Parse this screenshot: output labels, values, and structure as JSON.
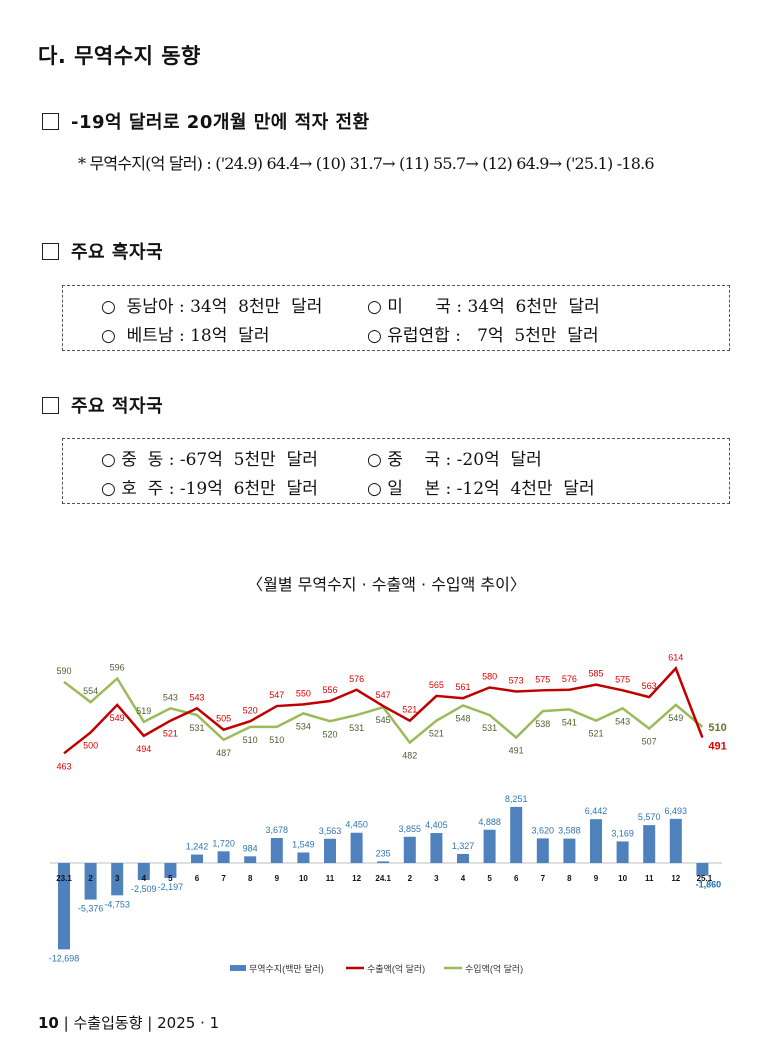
{
  "heading": "다. 무역수지 동향",
  "section1": {
    "title": "-19억 달러로 20개월 만에 적자 전환",
    "note": "* 무역수지(억 달러) : ('24.9) 64.4→ (10) 31.7→ (11) 55.7→ (12) 64.9→ ('25.1) -18.6"
  },
  "section2": {
    "title": "주요 흑자국",
    "items": [
      "○  동남아 : 34억  8천만  달러",
      "○ 미      국 : 34억  6천만  달러",
      "○  베트남 : 18억  달러",
      "○ 유럽연합 :   7억  5천만  달러"
    ]
  },
  "section3": {
    "title": "주요 적자국",
    "items": [
      "○ 중  동 : -67억  5천만  달러",
      "○ 중    국 : -20억  달러",
      "○ 호  주 : -19억  6천만  달러",
      "○ 일    본 : -12억  4천만  달러"
    ]
  },
  "chart_title": "〈월별 무역수지 · 수출액 · 수입액 추이〉",
  "chart_data": {
    "type": "bar+line",
    "categories": [
      "23.1",
      "2",
      "3",
      "4",
      "5",
      "6",
      "7",
      "8",
      "9",
      "10",
      "11",
      "12",
      "24.1",
      "2",
      "3",
      "4",
      "5",
      "6",
      "7",
      "8",
      "9",
      "10",
      "11",
      "12",
      "25.1"
    ],
    "series": [
      {
        "name": "무역수지(백만 달러)",
        "type": "bar",
        "color": "#4f81bd",
        "values": [
          -12698,
          -5376,
          -4753,
          -2509,
          -2197,
          1242,
          1720,
          984,
          3678,
          1549,
          3563,
          4450,
          235,
          3855,
          4405,
          1327,
          4888,
          8251,
          3620,
          3588,
          6442,
          3169,
          5570,
          6493,
          -1860
        ],
        "labels": [
          "-12,698",
          "-5,376",
          "-4,753",
          "-2,509",
          "-2,197",
          "1,242",
          "1,720",
          "984",
          "3,678",
          "1,549",
          "3,563",
          "4,450",
          "235",
          "3,855",
          "4,405",
          "1,327",
          "4,888",
          "8,251",
          "3,620",
          "3,588",
          "6,442",
          "3,169",
          "5,570",
          "6,493",
          "-1,860"
        ]
      },
      {
        "name": "수출액(억 달러)",
        "type": "line",
        "color": "#c00000",
        "values": [
          463,
          500,
          549,
          494,
          521,
          543,
          505,
          520,
          547,
          550,
          556,
          576,
          547,
          521,
          565,
          561,
          580,
          573,
          575,
          576,
          585,
          575,
          563,
          614,
          491
        ]
      },
      {
        "name": "수입액(억 달러)",
        "type": "line",
        "color": "#9bbb59",
        "values": [
          590,
          554,
          596,
          519,
          543,
          531,
          487,
          510,
          510,
          534,
          520,
          531,
          545,
          482,
          521,
          548,
          531,
          491,
          538,
          541,
          521,
          543,
          507,
          549,
          510
        ]
      }
    ],
    "legend_position": "bottom"
  },
  "footer": {
    "page": "10",
    "text": "수출입동향",
    "date": "2025 · 1",
    "sep": "|"
  }
}
